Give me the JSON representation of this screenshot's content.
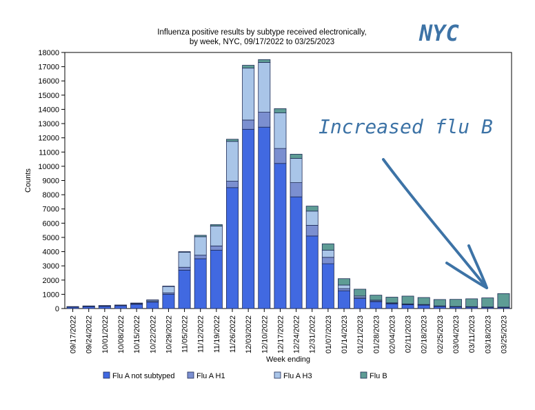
{
  "title_lines": [
    "Influenza positive results by subtype received electronically,",
    "by week, NYC, 09/17/2022 to 03/25/2023"
  ],
  "annotations": {
    "nyc": "NYC",
    "increased": "Increased flu B"
  },
  "chart_data": {
    "type": "bar",
    "stacked": true,
    "title": "Influenza positive results by subtype received electronically, by week, NYC, 09/17/2022 to 03/25/2023",
    "xlabel": "Week ending",
    "ylabel": "Counts",
    "ylim": [
      0,
      18000
    ],
    "yticks": [
      0,
      1000,
      2000,
      3000,
      4000,
      5000,
      6000,
      7000,
      8000,
      9000,
      10000,
      11000,
      12000,
      13000,
      14000,
      15000,
      16000,
      17000,
      18000
    ],
    "grid": false,
    "legend_position": "bottom",
    "categories": [
      "09/17/2022",
      "09/24/2022",
      "10/01/2022",
      "10/08/2022",
      "10/15/2022",
      "10/22/2022",
      "10/29/2022",
      "11/05/2022",
      "11/12/2022",
      "11/19/2022",
      "11/26/2022",
      "12/03/2022",
      "12/10/2022",
      "12/17/2022",
      "12/24/2022",
      "12/31/2022",
      "01/07/2023",
      "01/14/2023",
      "01/21/2023",
      "01/28/2023",
      "02/04/2023",
      "02/11/2023",
      "02/18/2023",
      "02/25/2023",
      "03/04/2023",
      "03/11/2023",
      "03/18/2023",
      "03/25/2023"
    ],
    "series": [
      {
        "name": "Flu A not subtyped",
        "color": "#4169e1",
        "values": [
          110,
          140,
          160,
          200,
          300,
          450,
          1000,
          2700,
          3500,
          4100,
          8500,
          12600,
          12750,
          10200,
          7850,
          5100,
          3150,
          1250,
          700,
          480,
          330,
          270,
          240,
          150,
          120,
          110,
          90,
          80
        ]
      },
      {
        "name": "Flu A H1",
        "color": "#7b8fd0",
        "values": [
          10,
          15,
          15,
          20,
          30,
          50,
          100,
          200,
          250,
          300,
          450,
          650,
          1050,
          1050,
          1000,
          750,
          450,
          150,
          80,
          50,
          30,
          25,
          20,
          15,
          10,
          10,
          10,
          10
        ]
      },
      {
        "name": "Flu A H3",
        "color": "#a9c5e8",
        "values": [
          20,
          30,
          30,
          30,
          50,
          100,
          450,
          1050,
          1300,
          1400,
          2800,
          3650,
          3500,
          2500,
          1700,
          1000,
          500,
          250,
          100,
          60,
          40,
          30,
          25,
          20,
          15,
          15,
          10,
          10
        ]
      },
      {
        "name": "Flu B",
        "color": "#5e9c95",
        "values": [
          0,
          0,
          5,
          0,
          5,
          10,
          30,
          50,
          100,
          100,
          150,
          200,
          200,
          300,
          300,
          350,
          450,
          450,
          480,
          350,
          400,
          550,
          490,
          450,
          500,
          550,
          640,
          950
        ]
      }
    ]
  }
}
